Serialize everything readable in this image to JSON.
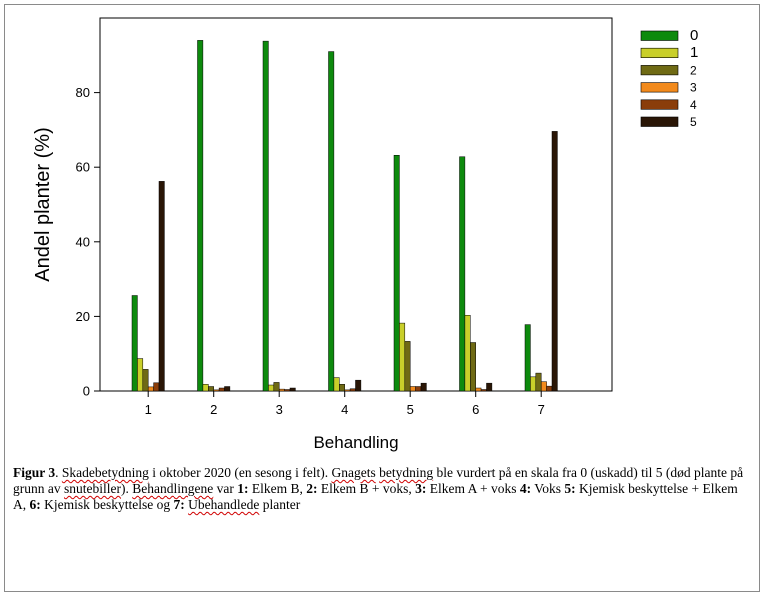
{
  "chart_data": {
    "type": "bar",
    "xlabel": "Behandling",
    "ylabel": "Andel planter (%)",
    "categories": [
      "1",
      "2",
      "3",
      "4",
      "5",
      "6",
      "7"
    ],
    "ylim": [
      0,
      100
    ],
    "yticks": [
      "0",
      "20",
      "40",
      "60",
      "80"
    ],
    "legend_position": "top-right",
    "series": [
      {
        "name": "0",
        "color": "#0d8a0d",
        "values": [
          25.6,
          94.0,
          93.8,
          91.0,
          63.2,
          62.8,
          17.8
        ]
      },
      {
        "name": "1",
        "color": "#c9cf2a",
        "values": [
          8.7,
          1.8,
          1.6,
          3.6,
          18.2,
          20.3,
          3.8
        ]
      },
      {
        "name": "2",
        "color": "#6f6a14",
        "values": [
          5.8,
          1.2,
          2.3,
          1.8,
          13.3,
          13.0,
          4.8
        ]
      },
      {
        "name": "3",
        "color": "#f28a1c",
        "values": [
          1.1,
          0.3,
          0.5,
          0.3,
          1.2,
          0.8,
          2.5
        ]
      },
      {
        "name": "4",
        "color": "#8a3d0a",
        "values": [
          2.2,
          0.8,
          0.4,
          0.6,
          1.2,
          0.4,
          1.3
        ]
      },
      {
        "name": "5",
        "color": "#2a1606",
        "values": [
          56.2,
          1.2,
          0.8,
          2.9,
          2.1,
          2.1,
          69.6
        ]
      }
    ]
  },
  "caption": {
    "label": "Figur 3",
    "text_1": ". ",
    "w_skadebetydning": "Skadebetydning",
    "text_2": " i oktober 2020 (en sesong i felt). ",
    "w_gnagets": "Gnagets",
    "text_3": " ",
    "w_betydning": "betydning",
    "text_4": " ble vurdert på en skala fra 0 (uskadd) til 5 (død plante på grunn av ",
    "w_snutebiller": "snutebiller",
    "text_5": "). ",
    "w_behandlingene": "Behandlingene",
    "text_6": " var ",
    "t1_num": "1:",
    "t1_text": " Elkem B, ",
    "t2_num": "2:",
    "t2_text": " Elkem B + voks, ",
    "t3_num": "3:",
    "t3_text": " Elkem A + voks ",
    "t4_num": "4:",
    "t4_text": " Voks ",
    "t5_num": "5:",
    "t5_text": " Kjemisk beskyttelse + Elkem A, ",
    "t6_num": "6:",
    "t6_text": " Kjemisk beskyttelse og ",
    "t7_num": "7:",
    "t7_text": " ",
    "w_ubehandlede": "Ubehandlede",
    "t7_tail": " planter"
  }
}
